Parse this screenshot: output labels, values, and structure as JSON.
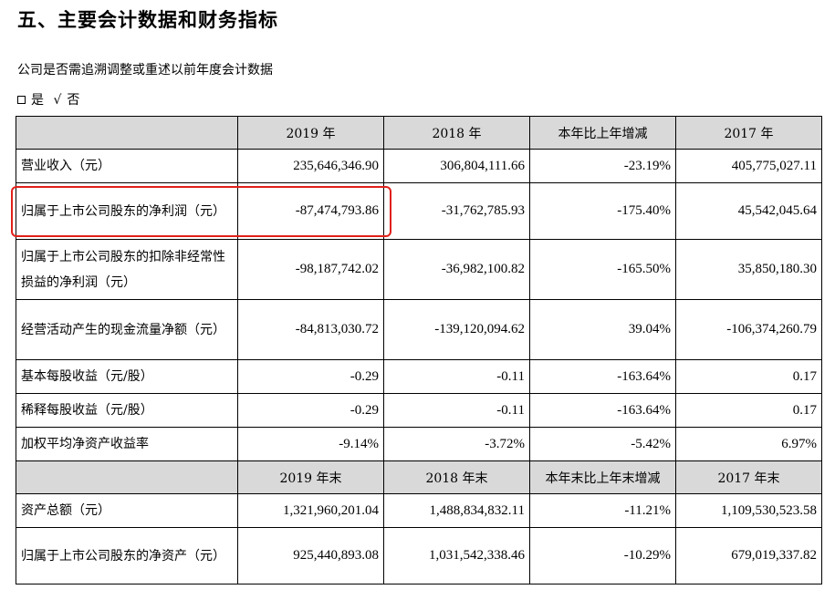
{
  "page": {
    "title": "五、主要会计数据和财务指标",
    "question": "公司是否需追溯调整或重述以前年度会计数据",
    "option_yes": "是",
    "option_no_mark": "√",
    "option_no": "否"
  },
  "table": {
    "header1": [
      "",
      "2019 年",
      "2018 年",
      "本年比上年增减",
      "2017 年"
    ],
    "rows1": [
      {
        "label": "营业收入（元）",
        "values": [
          "235,646,346.90",
          "306,804,111.66",
          "-23.19%",
          "405,775,027.11"
        ]
      },
      {
        "label": "归属于上市公司股东的净利润（元）",
        "values": [
          "-87,474,793.86",
          "-31,762,785.93",
          "-175.40%",
          "45,542,045.64"
        ]
      },
      {
        "label": "归属于上市公司股东的扣除非经常性损益的净利润（元）",
        "values": [
          "-98,187,742.02",
          "-36,982,100.82",
          "-165.50%",
          "35,850,180.30"
        ]
      },
      {
        "label": "经营活动产生的现金流量净额（元）",
        "values": [
          "-84,813,030.72",
          "-139,120,094.62",
          "39.04%",
          "-106,374,260.79"
        ]
      },
      {
        "label": "基本每股收益（元/股）",
        "values": [
          "-0.29",
          "-0.11",
          "-163.64%",
          "0.17"
        ]
      },
      {
        "label": "稀释每股收益（元/股）",
        "values": [
          "-0.29",
          "-0.11",
          "-163.64%",
          "0.17"
        ]
      },
      {
        "label": "加权平均净资产收益率",
        "values": [
          "-9.14%",
          "-3.72%",
          "-5.42%",
          "6.97%"
        ]
      }
    ],
    "header2": [
      "",
      "2019 年末",
      "2018 年末",
      "本年末比上年末增减",
      "2017 年末"
    ],
    "rows2": [
      {
        "label": "资产总额（元）",
        "values": [
          "1,321,960,201.04",
          "1,488,834,832.11",
          "-11.21%",
          "1,109,530,523.58"
        ]
      },
      {
        "label": "归属于上市公司股东的净资产（元）",
        "values": [
          "925,440,893.08",
          "1,031,542,338.46",
          "-10.29%",
          "679,019,337.82"
        ]
      }
    ]
  },
  "colors": {
    "highlight": "#e0201a",
    "header_bg": "#d9d9d9"
  }
}
